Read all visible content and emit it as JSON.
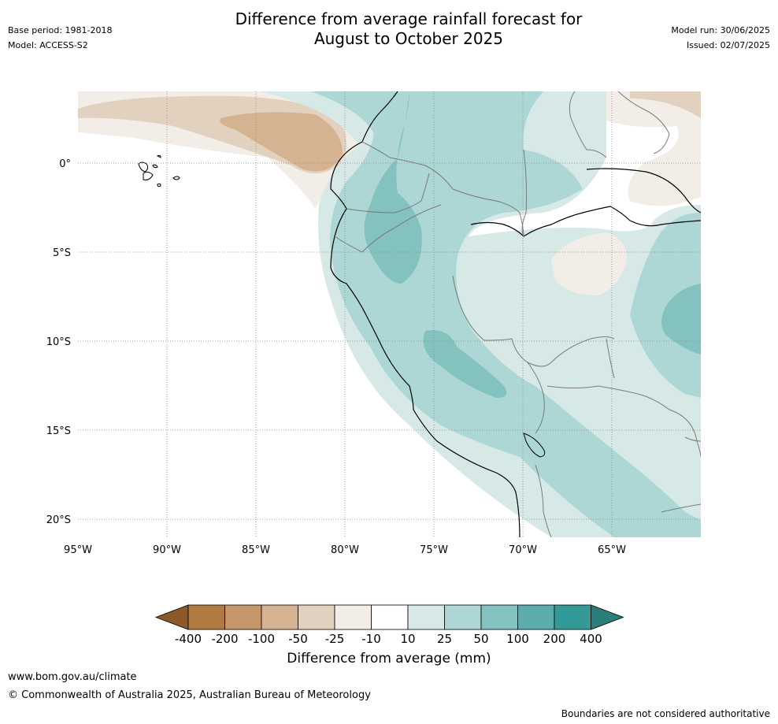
{
  "header": {
    "title_line1": "Difference from average rainfall forecast for",
    "title_line2": "August to October 2025",
    "base_period": "Base period: 1981-2018",
    "model": "Model: ACCESS-S2",
    "model_run": "Model run: 30/06/2025",
    "issued": "Issued: 02/07/2025"
  },
  "map": {
    "lon_ticks": [
      "95°W",
      "90°W",
      "85°W",
      "80°W",
      "75°W",
      "70°W",
      "65°W"
    ],
    "lat_ticks": [
      "0°",
      "5°S",
      "10°S",
      "15°S",
      "20°S"
    ],
    "lon_range": [
      -95,
      -60
    ],
    "lat_range": [
      -21,
      4
    ],
    "gridlines": true
  },
  "legend": {
    "labels": [
      "-400",
      "-200",
      "-100",
      "-50",
      "-25",
      "-10",
      "10",
      "25",
      "50",
      "100",
      "200",
      "400"
    ],
    "colors": [
      "#8c5a2a",
      "#b07a43",
      "#c4966a",
      "#d5b290",
      "#e3d1bf",
      "#f2ede7",
      "#ffffff",
      "#d6e9e7",
      "#acd7d5",
      "#83c2bf",
      "#5cacab",
      "#349a97",
      "#2a7f7d"
    ],
    "title": "Difference from average (mm)"
  },
  "footer": {
    "url": "www.bom.gov.au/climate",
    "copyright": "© Commonwealth of Australia 2025, Australian Bureau of Meteorology",
    "disclaimer": "Boundaries are not considered authoritative"
  }
}
